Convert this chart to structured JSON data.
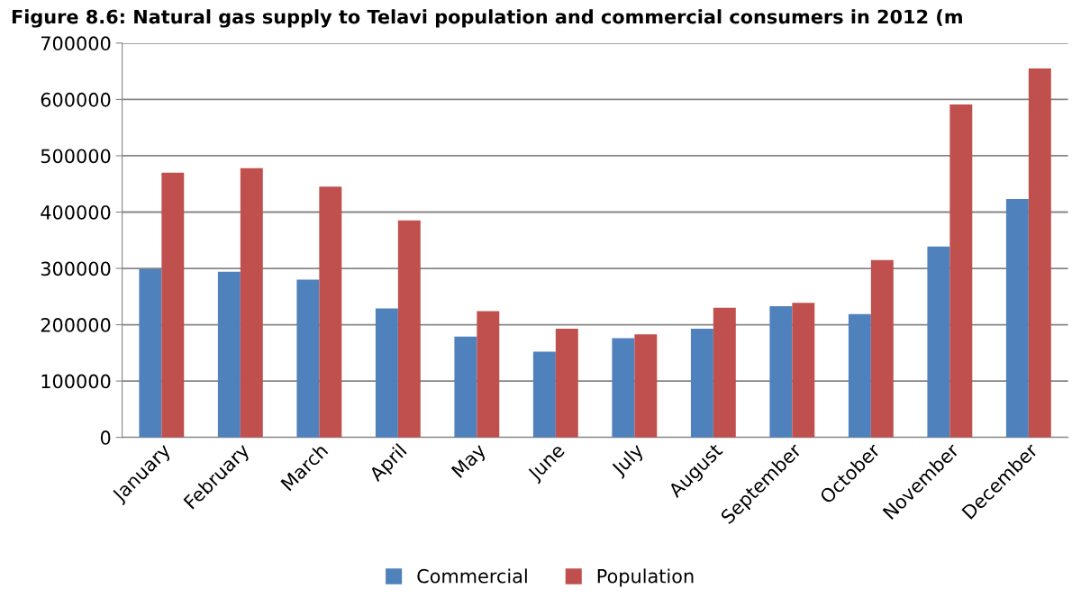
{
  "chart_data": {
    "type": "bar",
    "title": "Figure 8.6: Natural gas supply to Telavi population and commercial consumers in 2012 (m",
    "categories": [
      "January",
      "February",
      "March",
      "April",
      "May",
      "June",
      "July",
      "August",
      "September",
      "October",
      "November",
      "December"
    ],
    "series": [
      {
        "name": "Commercial",
        "color": "#4f81bd",
        "values": [
          299000,
          294000,
          280000,
          229000,
          179000,
          152000,
          176000,
          193000,
          233000,
          219000,
          339000,
          423000
        ]
      },
      {
        "name": "Population",
        "color": "#c0504d",
        "values": [
          470000,
          478000,
          445000,
          385000,
          224000,
          193000,
          183000,
          230000,
          239000,
          315000,
          591000,
          655000
        ]
      }
    ],
    "ylim": [
      0,
      700000
    ],
    "yticks": [
      0,
      100000,
      200000,
      300000,
      400000,
      500000,
      600000,
      700000
    ],
    "grid": "y",
    "legend": "bottom"
  }
}
